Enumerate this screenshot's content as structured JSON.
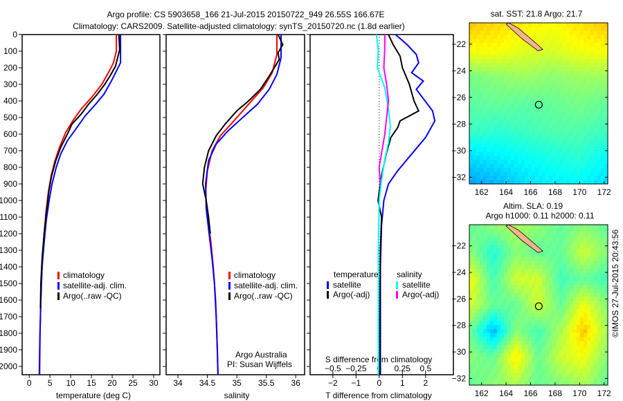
{
  "title_line1": "Argo profile: CS 5903658_166 21-Jul-2015 20150722_949 26.55S 166.67E",
  "title_line2": "Climatology: CARS2009. Satellite-adjusted climatology: synTS_20150720.nc (1.8d earlier)",
  "colors": {
    "clim": "#ff0000",
    "sat": "#0000ff",
    "argo": "#000000",
    "sal_sat": "#00ffff",
    "sal_argo": "#ff00ff"
  },
  "chart_data": [
    {
      "type": "line",
      "name": "temperature",
      "xlabel": "temperature (deg C)",
      "ylabel": "",
      "xlim": [
        -1.7,
        31.5
      ],
      "ylim": [
        2050,
        0
      ],
      "xticks": [
        0,
        5,
        10,
        15,
        20,
        25,
        30
      ],
      "yticks": [
        0,
        100,
        200,
        300,
        400,
        500,
        600,
        700,
        800,
        900,
        1000,
        1100,
        1200,
        1300,
        1400,
        1500,
        1600,
        1700,
        1800,
        1900,
        2000
      ],
      "legend": [
        "climatology",
        "satellite-adj. clim.",
        "Argo(..raw -QC)"
      ],
      "series": [
        {
          "name": "climatology",
          "color": "clim",
          "points": [
            [
              21,
              0
            ],
            [
              21,
              100
            ],
            [
              20.3,
              170
            ],
            [
              19.3,
              220
            ],
            [
              17.5,
              300
            ],
            [
              15,
              380
            ],
            [
              12.5,
              450
            ],
            [
              10.5,
              520
            ],
            [
              8.8,
              590
            ],
            [
              7.3,
              680
            ],
            [
              6.2,
              760
            ],
            [
              5.3,
              850
            ],
            [
              4.6,
              950
            ],
            [
              4,
              1080
            ],
            [
              3.6,
              1200
            ],
            [
              3.2,
              1350
            ],
            [
              2.9,
              1500
            ],
            [
              2.7,
              1700
            ],
            [
              2.5,
              1900
            ],
            [
              2.4,
              2050
            ]
          ]
        },
        {
          "name": "satellite-adj. clim.",
          "color": "sat",
          "points": [
            [
              22,
              0
            ],
            [
              22,
              170
            ],
            [
              21,
              220
            ],
            [
              19.8,
              280
            ],
            [
              18,
              360
            ],
            [
              16,
              420
            ],
            [
              13.5,
              490
            ],
            [
              11.5,
              560
            ],
            [
              9.2,
              640
            ],
            [
              7.6,
              720
            ],
            [
              6.5,
              800
            ],
            [
              5.5,
              900
            ],
            [
              4.8,
              1000
            ],
            [
              4.1,
              1120
            ],
            [
              3.6,
              1250
            ],
            [
              3.1,
              1400
            ],
            [
              2.8,
              1600
            ],
            [
              2.6,
              1800
            ],
            [
              2.5,
              2050
            ]
          ]
        },
        {
          "name": "Argo(..raw -QC)",
          "color": "argo",
          "points": [
            [
              21.6,
              0
            ],
            [
              21.8,
              90
            ],
            [
              20.8,
              190
            ],
            [
              19.7,
              240
            ],
            [
              18.2,
              300
            ],
            [
              16.4,
              360
            ],
            [
              14.3,
              420
            ],
            [
              12.5,
              480
            ],
            [
              10.3,
              540
            ],
            [
              9.2,
              600
            ],
            [
              7.6,
              680
            ],
            [
              6.4,
              760
            ],
            [
              5.4,
              850
            ],
            [
              4.7,
              950
            ],
            [
              4.1,
              1080
            ],
            [
              3.6,
              1200
            ],
            [
              3.1,
              1350
            ],
            [
              2.8,
              1500
            ],
            [
              2.7,
              1650
            ]
          ]
        }
      ]
    },
    {
      "type": "line",
      "name": "salinity",
      "xlabel": "salinity",
      "ylabel": "",
      "xlim": [
        33.8,
        36.15
      ],
      "ylim": [
        2050,
        0
      ],
      "xticks": [
        34,
        34.5,
        35,
        35.5,
        36
      ],
      "legend": [
        "climatology",
        "satellite-adj. clim.",
        "Argo(..raw -QC)"
      ],
      "annotation": [
        "Argo Australia",
        "PI: Susan Wijffels"
      ],
      "series": [
        {
          "name": "climatology",
          "color": "clim",
          "points": [
            [
              35.68,
              0
            ],
            [
              35.68,
              120
            ],
            [
              35.6,
              230
            ],
            [
              35.45,
              320
            ],
            [
              35.2,
              420
            ],
            [
              34.95,
              520
            ],
            [
              34.72,
              610
            ],
            [
              34.58,
              700
            ],
            [
              34.5,
              820
            ],
            [
              34.47,
              950
            ],
            [
              34.5,
              1100
            ],
            [
              34.56,
              1250
            ],
            [
              34.6,
              1400
            ],
            [
              34.64,
              1600
            ],
            [
              34.66,
              1800
            ],
            [
              34.68,
              2050
            ]
          ]
        },
        {
          "name": "satellite-adj. clim.",
          "color": "sat",
          "points": [
            [
              35.75,
              0
            ],
            [
              35.75,
              140
            ],
            [
              35.68,
              240
            ],
            [
              35.55,
              330
            ],
            [
              35.35,
              420
            ],
            [
              35.1,
              500
            ],
            [
              34.85,
              580
            ],
            [
              34.65,
              660
            ],
            [
              34.52,
              760
            ],
            [
              34.47,
              900
            ],
            [
              34.48,
              1050
            ],
            [
              34.53,
              1200
            ],
            [
              34.58,
              1350
            ],
            [
              34.62,
              1500
            ],
            [
              34.65,
              1700
            ],
            [
              34.67,
              1900
            ],
            [
              34.68,
              2050
            ]
          ]
        },
        {
          "name": "Argo(..raw -QC)",
          "color": "argo",
          "points": [
            [
              35.7,
              0
            ],
            [
              35.78,
              60
            ],
            [
              35.7,
              110
            ],
            [
              35.72,
              150
            ],
            [
              35.55,
              250
            ],
            [
              35.4,
              330
            ],
            [
              35.2,
              400
            ],
            [
              35,
              460
            ],
            [
              34.8,
              540
            ],
            [
              34.65,
              610
            ],
            [
              34.52,
              700
            ],
            [
              34.45,
              800
            ],
            [
              34.42,
              900
            ],
            [
              34.48,
              1000
            ],
            [
              34.52,
              1100
            ],
            [
              34.55,
              1200
            ]
          ]
        }
      ]
    },
    {
      "type": "line",
      "name": "difference",
      "xlabel": "T difference from climatology",
      "x2label": "S difference from climatology",
      "xlim": [
        -2.98,
        3.2
      ],
      "ylim": [
        2050,
        0
      ],
      "xticks": [
        -2,
        -1,
        0,
        1,
        2
      ],
      "x2ticks": [
        -0.5,
        -0.25,
        0,
        0.25,
        0.5
      ],
      "legend_left": [
        "temperature",
        "satellite",
        "Argo(-adj)"
      ],
      "legend_right": [
        "salinity",
        "satellite",
        "Argo(-adj)"
      ],
      "series": [
        {
          "name": "T satellite",
          "color": "sat",
          "scale": "T",
          "points": [
            [
              0.7,
              0
            ],
            [
              1.2,
              60
            ],
            [
              1.6,
              120
            ],
            [
              1.7,
              170
            ],
            [
              1.4,
              230
            ],
            [
              1.9,
              280
            ],
            [
              1.6,
              330
            ],
            [
              2.3,
              460
            ],
            [
              2.4,
              520
            ],
            [
              2,
              620
            ],
            [
              1.4,
              720
            ],
            [
              0.8,
              820
            ],
            [
              0.4,
              900
            ],
            [
              0.2,
              1000
            ],
            [
              0.1,
              1150
            ],
            [
              0.05,
              1400
            ],
            [
              0.05,
              2050
            ]
          ]
        },
        {
          "name": "T Argo(-adj)",
          "color": "argo",
          "scale": "T",
          "points": [
            [
              0.4,
              0
            ],
            [
              0.6,
              60
            ],
            [
              0.9,
              130
            ],
            [
              1,
              200
            ],
            [
              1.3,
              300
            ],
            [
              1.5,
              400
            ],
            [
              1.7,
              460
            ],
            [
              1.3,
              490
            ],
            [
              0.9,
              520
            ],
            [
              0.8,
              560
            ],
            [
              0.5,
              620
            ],
            [
              0.3,
              720
            ],
            [
              0.1,
              850
            ],
            [
              0,
              950
            ],
            [
              -0.05,
              1000
            ],
            [
              0.1,
              1100
            ],
            [
              0.05,
              1300
            ],
            [
              0.03,
              1700
            ],
            [
              0.03,
              2050
            ]
          ]
        },
        {
          "name": "S satellite",
          "color": "sal_sat",
          "scale": "S",
          "points": [
            [
              -0.03,
              0
            ],
            [
              -0.01,
              100
            ],
            [
              -0.02,
              200
            ],
            [
              0.06,
              320
            ],
            [
              0.1,
              450
            ],
            [
              0.12,
              550
            ],
            [
              0.1,
              650
            ],
            [
              0.06,
              750
            ],
            [
              0.02,
              900
            ],
            [
              0,
              1000
            ],
            [
              -0.01,
              1300
            ],
            [
              -0.01,
              2050
            ]
          ]
        },
        {
          "name": "S Argo(-adj)",
          "color": "sal_argo",
          "scale": "S",
          "points": [
            [
              0.06,
              0
            ],
            [
              0.06,
              80
            ],
            [
              0.05,
              200
            ],
            [
              0.08,
              300
            ],
            [
              0.1,
              400
            ],
            [
              0.08,
              500
            ],
            [
              0.06,
              600
            ],
            [
              0.03,
              700
            ],
            [
              0,
              800
            ],
            [
              0.01,
              900
            ]
          ]
        }
      ]
    },
    {
      "type": "heatmap",
      "name": "sst_map",
      "title": "sat. SST: 21.8 Argo: 21.7",
      "xlim": [
        161,
        172.3
      ],
      "ylim": [
        -32.5,
        -20.4
      ],
      "xticks": [
        162,
        164,
        166,
        168,
        170,
        172
      ],
      "yticks": [
        -22,
        -24,
        -26,
        -28,
        -30,
        -32
      ],
      "crange": [
        18,
        24
      ],
      "argo_position": [
        166.67,
        -26.55
      ],
      "grid": [
        [
          23.2,
          23.0,
          22.8,
          22.6,
          22.9,
          23.2
        ],
        [
          22.6,
          22.6,
          22.3,
          22.2,
          22.5,
          22.6
        ],
        [
          21.2,
          21.4,
          21.6,
          21.4,
          21.6,
          21.6
        ],
        [
          20.9,
          21.0,
          20.9,
          21.0,
          21.2,
          21.0
        ],
        [
          20.6,
          20.4,
          20.6,
          20.8,
          20.8,
          20.6
        ],
        [
          19.6,
          19.8,
          20.0,
          20.2,
          20.4,
          20.0
        ],
        [
          19.0,
          19.2,
          19.6,
          19.8,
          19.9,
          19.6
        ]
      ]
    },
    {
      "type": "heatmap",
      "name": "sla_map",
      "title": "Altim. SLA: 0.19",
      "subtitle": "Argo h1000: 0.11 h2000: 0.11",
      "xlim": [
        161,
        172.3
      ],
      "ylim": [
        -32.5,
        -20.4
      ],
      "xticks": [
        162,
        164,
        166,
        168,
        170,
        172
      ],
      "yticks": [
        -22,
        -24,
        -26,
        -28,
        -30,
        -32
      ],
      "crange": [
        -0.4,
        0.4
      ],
      "argo_position": [
        166.67,
        -26.55
      ],
      "grid": [
        [
          0.0,
          0.05,
          0.1,
          0.05,
          0.0,
          0.05,
          0.0
        ],
        [
          0.05,
          -0.1,
          0.05,
          0.0,
          0.0,
          0.15,
          0.05
        ],
        [
          0.2,
          -0.05,
          0.15,
          0.15,
          -0.05,
          0.0,
          -0.05
        ],
        [
          0.15,
          0.0,
          0.0,
          0.15,
          0.0,
          0.2,
          0.05
        ],
        [
          0.0,
          -0.25,
          0.05,
          -0.05,
          0.1,
          0.3,
          0.1
        ],
        [
          0.05,
          0.0,
          0.25,
          0.0,
          0.15,
          0.2,
          0.05
        ],
        [
          0.0,
          0.05,
          0.1,
          0.0,
          0.05,
          0.1,
          0.0
        ]
      ]
    }
  ],
  "watermark": "©IMOS 27-Jul-2015 20:43:56"
}
